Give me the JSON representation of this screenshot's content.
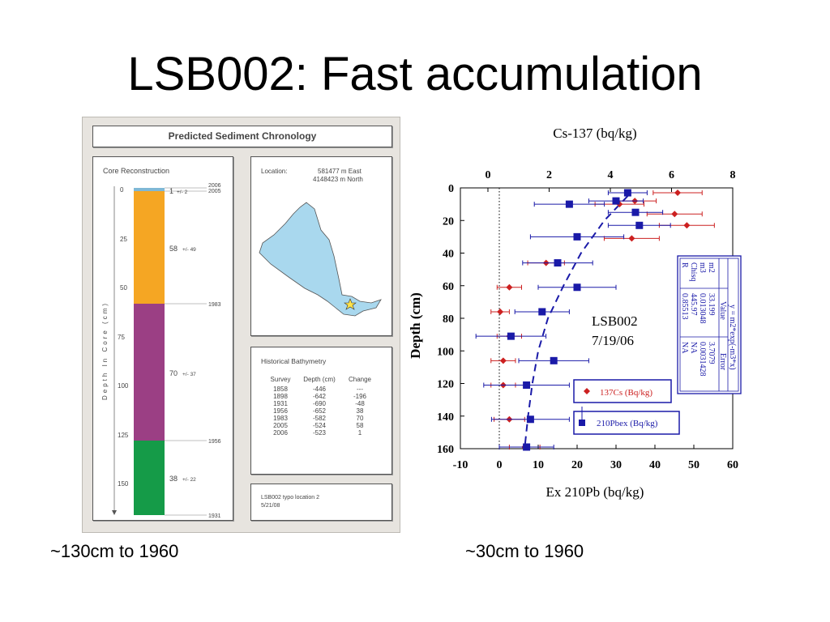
{
  "slide": {
    "title": "LSB002: Fast accumulation",
    "caption_left": "~130cm to 1960",
    "caption_right": "~30cm to 1960"
  },
  "poster": {
    "header": "Predicted Sediment Chronology",
    "core": {
      "title": "Core Reconstruction",
      "axis_label": "Depth In Core (cm)",
      "depth_ticks": [
        "0",
        "25",
        "50",
        "75",
        "100",
        "125",
        "150"
      ],
      "layers": [
        {
          "value": "1",
          "error": "+/- 2",
          "color": "#7fb8d6"
        },
        {
          "value": "58",
          "error": "+/- 49",
          "color": "#f5a623"
        },
        {
          "value": "70",
          "error": "+/- 37",
          "color": "#9b3f84"
        },
        {
          "value": "38",
          "error": "+/- 22",
          "color": "#159b48"
        }
      ],
      "years": [
        "2006",
        "2005",
        "1983",
        "1956",
        "1931"
      ]
    },
    "location": {
      "label": "Location:",
      "east": "581477 m East",
      "north": "4148423 m North",
      "lake_color": "#a9d8ee",
      "marker": "star-icon"
    },
    "bathymetry": {
      "title": "Historical Bathymetry",
      "headers": [
        "Survey",
        "Depth (cm)",
        "Change"
      ],
      "rows": [
        [
          "1858",
          "-446",
          "---"
        ],
        [
          "1898",
          "-642",
          "-196"
        ],
        [
          "1931",
          "-690",
          "-48"
        ],
        [
          "1956",
          "-652",
          "38"
        ],
        [
          "1983",
          "-582",
          "70"
        ],
        [
          "2005",
          "-524",
          "58"
        ],
        [
          "2006",
          "-523",
          "1"
        ]
      ]
    },
    "note": {
      "line1": "LSB002 typo location 2",
      "line2": "5/21/08"
    }
  },
  "chart_data": {
    "type": "scatter",
    "title": "Cs-137 (bq/kg)",
    "xlabel": "Ex 210Pb (bq/kg)",
    "ylabel": "Depth (cm)",
    "top_axis": {
      "label": "Cs-137 (bq/kg)",
      "range": [
        -0.9,
        8
      ],
      "ticks": [
        "0",
        "2",
        "4",
        "6",
        "8"
      ]
    },
    "bottom_axis": {
      "label": "Ex 210Pb (bq/kg)",
      "range": [
        -10,
        60
      ],
      "ticks": [
        "-10",
        "0",
        "10",
        "20",
        "30",
        "40",
        "50",
        "60"
      ]
    },
    "y_axis": {
      "range": [
        0,
        160
      ],
      "inverted": true,
      "ticks": [
        "0",
        "20",
        "40",
        "60",
        "80",
        "100",
        "120",
        "140",
        "160"
      ]
    },
    "annotation": {
      "line1": "LSB002",
      "line2": "7/19/06"
    },
    "series": [
      {
        "name": "137Cs (Bq/kg)",
        "axis": "top",
        "color": "#cc2020",
        "marker": "diamond",
        "points": [
          {
            "x": 6.2,
            "y": 3,
            "err": 0.8
          },
          {
            "x": 4.8,
            "y": 8,
            "err": 0.7
          },
          {
            "x": 4.3,
            "y": 10,
            "err": 0.8
          },
          {
            "x": 6.1,
            "y": 16,
            "err": 0.9
          },
          {
            "x": 6.5,
            "y": 23,
            "err": 0.9
          },
          {
            "x": 4.7,
            "y": 31,
            "err": 0.9
          },
          {
            "x": 1.9,
            "y": 46,
            "err": 0.6
          },
          {
            "x": 0.7,
            "y": 61,
            "err": 0.4
          },
          {
            "x": 0.4,
            "y": 76,
            "err": 0.3
          },
          {
            "x": 0.7,
            "y": 91,
            "err": 0.4
          },
          {
            "x": 0.5,
            "y": 106,
            "err": 0.4
          },
          {
            "x": 0.5,
            "y": 121,
            "err": 0.4
          },
          {
            "x": 0.7,
            "y": 142,
            "err": 0.5
          },
          {
            "x": 1.2,
            "y": 159,
            "err": 0.5
          }
        ]
      },
      {
        "name": "210Pbex (Bq/kg)",
        "axis": "bottom",
        "color": "#1a1aa8",
        "marker": "square",
        "points": [
          {
            "x": 33,
            "y": 3,
            "err": 5
          },
          {
            "x": 30,
            "y": 8,
            "err": 7
          },
          {
            "x": 18,
            "y": 10,
            "err": 9
          },
          {
            "x": 35,
            "y": 15,
            "err": 7
          },
          {
            "x": 36,
            "y": 23,
            "err": 8
          },
          {
            "x": 20,
            "y": 30,
            "err": 12
          },
          {
            "x": 15,
            "y": 46,
            "err": 9
          },
          {
            "x": 20,
            "y": 61,
            "err": 10
          },
          {
            "x": 11,
            "y": 76,
            "err": 7
          },
          {
            "x": 3,
            "y": 91,
            "err": 9
          },
          {
            "x": 14,
            "y": 106,
            "err": 9
          },
          {
            "x": 7,
            "y": 121,
            "err": 11
          },
          {
            "x": 8,
            "y": 142,
            "err": 10
          },
          {
            "x": 7,
            "y": 159,
            "err": 7
          }
        ]
      }
    ],
    "fit_curve": {
      "style": "dashed",
      "color": "#1a1aa8",
      "x": [
        33,
        27,
        21,
        16.5,
        12.5,
        10,
        8.5,
        7.4,
        6.5
      ],
      "y": [
        5,
        20,
        40,
        60,
        80,
        100,
        120,
        140,
        160
      ]
    },
    "fit_table": {
      "equation": "y = m2*exp(-m3*x)",
      "headers": [
        "",
        "Value",
        "Error"
      ],
      "rows": [
        [
          "m2",
          "33.199",
          "3.7079"
        ],
        [
          "m3",
          "0.013048",
          "0.0031428"
        ],
        [
          "Chisq",
          "445.97",
          "NA"
        ],
        [
          "R",
          "0.85513",
          "NA"
        ]
      ]
    },
    "grid": false
  }
}
